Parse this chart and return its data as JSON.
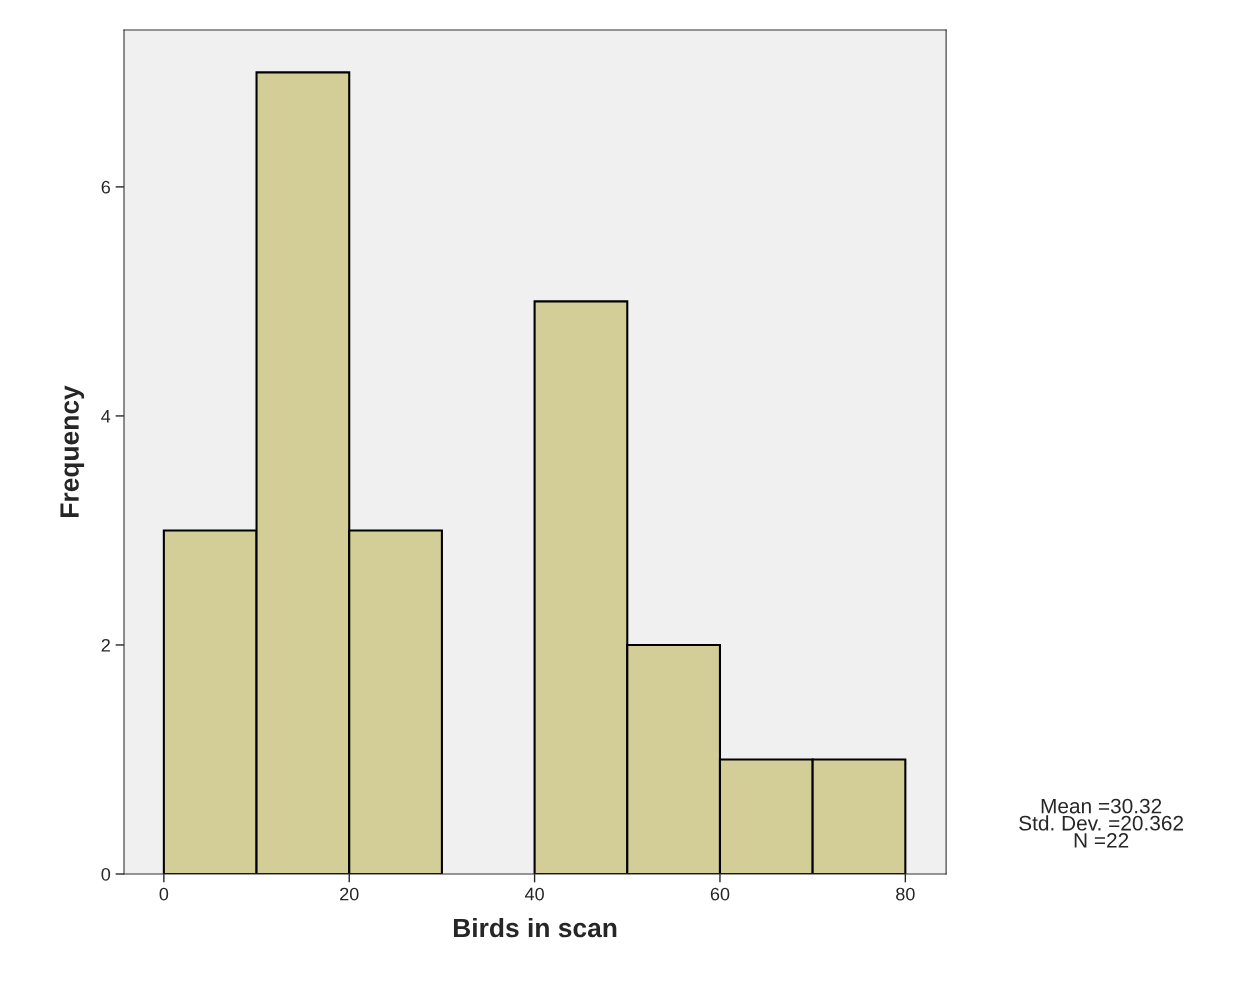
{
  "chart_data": {
    "type": "histogram",
    "xlabel": "Birds in scan",
    "ylabel": "Frequency",
    "bins": [
      0,
      10,
      20,
      30,
      40,
      50,
      60,
      70,
      80
    ],
    "values": [
      3,
      7,
      3,
      0,
      5,
      2,
      1,
      1
    ],
    "color": "#d3cd97",
    "xlim": [
      -4.3,
      84.4
    ],
    "ylim": [
      0,
      7.37
    ],
    "xticks": [
      0,
      20,
      40,
      60,
      80
    ],
    "yticks": [
      0,
      2,
      4,
      6
    ],
    "grid": false,
    "annotations": [
      "Mean =30.32",
      "Std. Dev. =20.362",
      "N =22"
    ]
  }
}
